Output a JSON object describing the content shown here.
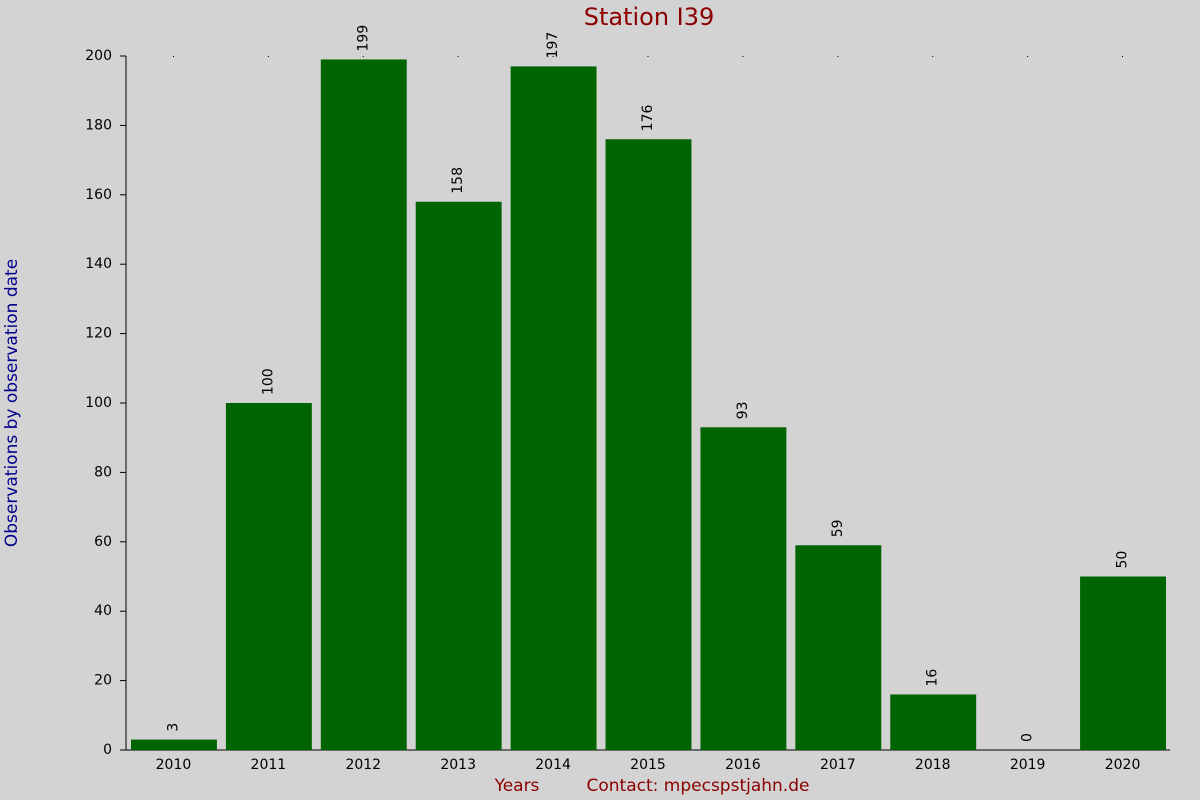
{
  "chart_data": {
    "type": "bar",
    "title": "Station I39",
    "y_label": "Observations by observation date",
    "x_label": "Years",
    "contact": "Contact: mpecspstjahn.de",
    "categories": [
      "2010",
      "2011",
      "2012",
      "2013",
      "2014",
      "2015",
      "2016",
      "2017",
      "2018",
      "2019",
      "2020"
    ],
    "values": [
      3,
      100,
      199,
      158,
      197,
      176,
      93,
      59,
      16,
      0,
      50
    ],
    "color": "#006400",
    "ylim": [
      0,
      200
    ],
    "yticks": [
      0,
      20,
      40,
      60,
      80,
      100,
      120,
      140,
      160,
      180,
      200
    ],
    "grid": false
  }
}
